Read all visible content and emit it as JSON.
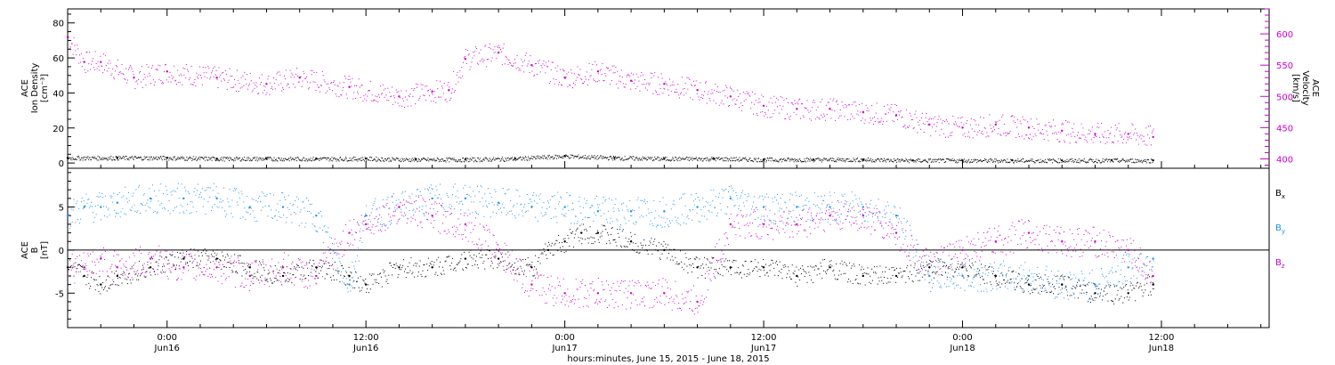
{
  "chart_data": [
    {
      "type": "scatter",
      "panel": "top",
      "ylabel_lines": [
        "ACE",
        "Ion Density",
        "[cm⁻³]"
      ],
      "ylim": [
        -3,
        88
      ],
      "yticks": [
        0,
        20,
        40,
        60,
        80
      ],
      "ytick_labels": [
        "0",
        "20",
        "40",
        "60",
        "80"
      ],
      "y2label_lines": [
        "ACE",
        "Velocity",
        "[km/s]"
      ],
      "y2lim": [
        385,
        640
      ],
      "y2ticks": [
        400,
        450,
        500,
        550,
        600
      ],
      "y2tick_labels": [
        "400",
        "450",
        "500",
        "550",
        "600"
      ],
      "series": [
        {
          "name": "Ion Density",
          "color": "#000000",
          "axis": "left",
          "x_hours": [
            0,
            3,
            6,
            9,
            12,
            15,
            18,
            21,
            24,
            27,
            30,
            33,
            36,
            39,
            42,
            45,
            48,
            51,
            54,
            57,
            60,
            63,
            65.5
          ],
          "values": [
            3,
            3,
            3,
            2.5,
            2.5,
            2.5,
            2.5,
            2,
            2,
            2.5,
            4,
            3,
            2.5,
            2.5,
            2,
            2,
            2,
            1.5,
            1.5,
            1.5,
            1.5,
            1.5,
            1.5
          ]
        },
        {
          "name": "Velocity",
          "color": "#cc00cc",
          "axis": "right",
          "x_hours": [
            0,
            1,
            2,
            4,
            6,
            9,
            12,
            14,
            17,
            20,
            22,
            23,
            24,
            26,
            28,
            30,
            32,
            34,
            36,
            38,
            40,
            42,
            44,
            46,
            48,
            50,
            52,
            54,
            56,
            58,
            60,
            62,
            64,
            65.5
          ],
          "values": [
            595,
            555,
            555,
            530,
            540,
            530,
            520,
            530,
            515,
            500,
            508,
            510,
            560,
            570,
            550,
            530,
            540,
            525,
            520,
            510,
            500,
            485,
            480,
            480,
            475,
            470,
            455,
            450,
            455,
            450,
            445,
            440,
            440,
            435
          ]
        }
      ]
    },
    {
      "type": "scatter",
      "panel": "bottom",
      "ylabel_lines": [
        "ACE",
        "B",
        "[nT]"
      ],
      "ylim": [
        -9,
        9.5
      ],
      "yticks": [
        -5,
        0,
        5
      ],
      "ytick_labels": [
        "-5",
        "0",
        "5"
      ],
      "zero_line": true,
      "series": [
        {
          "name": "Bx",
          "color": "#000000",
          "x_hours": [
            0,
            1,
            2,
            3,
            5,
            7,
            9,
            11,
            13,
            15,
            17,
            18,
            20,
            22,
            24,
            26,
            28,
            29,
            30,
            31,
            32,
            34,
            36,
            38,
            40,
            42,
            44,
            46,
            48,
            50,
            52,
            54,
            56,
            58,
            60,
            62,
            64,
            65.5
          ],
          "values": [
            -2,
            -3,
            -4,
            -3,
            -2,
            -1,
            -1,
            -2,
            -3,
            -2,
            -3,
            -4,
            -2,
            -2,
            -1,
            -1,
            -2,
            0,
            1,
            2,
            2,
            1,
            0,
            -2,
            -2,
            -2,
            -3,
            -2,
            -3,
            -3,
            -2,
            -2,
            -3,
            -4,
            -4,
            -5,
            -5,
            -4
          ]
        },
        {
          "name": "By",
          "color": "#1e90e8",
          "x_hours": [
            0,
            1,
            2,
            3,
            5,
            7,
            9,
            11,
            13,
            15,
            17,
            18,
            20,
            22,
            24,
            26,
            28,
            30,
            32,
            34,
            36,
            38,
            40,
            42,
            44,
            46,
            48,
            50,
            52,
            54,
            56,
            58,
            60,
            62,
            64,
            65.5
          ],
          "values": [
            4,
            5,
            5,
            5.5,
            6,
            6,
            6,
            5,
            5,
            4,
            -4,
            4,
            5,
            6,
            6,
            5.5,
            5,
            5,
            4.5,
            4.5,
            4.5,
            5,
            6,
            5,
            5,
            5,
            5,
            4,
            -3,
            -3,
            -3,
            -3,
            -4,
            -4,
            -2,
            -1
          ]
        },
        {
          "name": "Bz",
          "color": "#cc00cc",
          "x_hours": [
            0,
            1,
            2,
            3,
            5,
            7,
            9,
            11,
            13,
            15,
            17,
            18,
            20,
            22,
            24,
            26,
            28,
            30,
            32,
            34,
            36,
            38,
            40,
            42,
            44,
            46,
            48,
            50,
            52,
            54,
            56,
            58,
            60,
            62,
            64,
            65.5
          ],
          "values": [
            -2,
            -2,
            -1,
            -2,
            -1,
            -2,
            -2,
            -3,
            -2,
            -3,
            2,
            3,
            5,
            4,
            3,
            0,
            -4,
            -5,
            -5,
            -5,
            -5,
            -6,
            3,
            3,
            3,
            4,
            4,
            2,
            -2,
            0,
            1,
            2,
            1,
            1,
            0,
            -3
          ]
        }
      ]
    }
  ],
  "x_axis": {
    "ticks": [
      {
        "hours": 6,
        "line1": "0:00",
        "line2": "Jun16"
      },
      {
        "hours": 18,
        "line1": "12:00",
        "line2": "Jun16"
      },
      {
        "hours": 30,
        "line1": "0:00",
        "line2": "Jun17"
      },
      {
        "hours": 42,
        "line1": "12:00",
        "line2": "Jun17"
      },
      {
        "hours": 54,
        "line1": "0:00",
        "line2": "Jun18"
      },
      {
        "hours": 66,
        "line1": "12:00",
        "line2": "Jun18"
      }
    ],
    "xlim_hours": [
      0,
      72.5
    ],
    "xlabel": "hours:minutes, June 15, 2015 - June 18, 2015"
  },
  "legend": {
    "items": [
      {
        "base": "B",
        "sub": "x",
        "color": "#000000"
      },
      {
        "base": "B",
        "sub": "y",
        "color": "#1e90e8"
      },
      {
        "base": "B",
        "sub": "z",
        "color": "#cc00cc"
      }
    ]
  }
}
